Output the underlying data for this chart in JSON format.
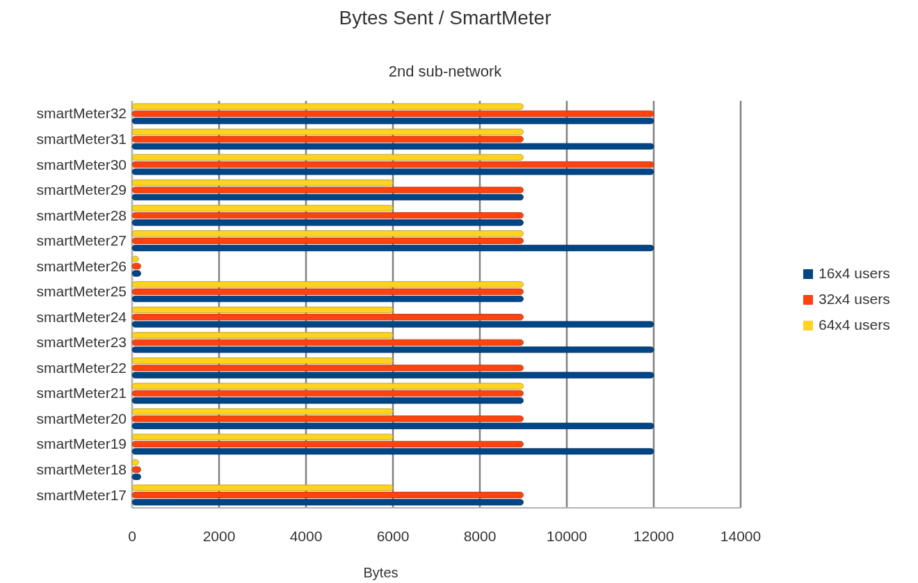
{
  "chart_data": {
    "type": "bar",
    "orientation": "horizontal",
    "title": "Bytes Sent / SmartMeter",
    "subtitle": "2nd sub-network",
    "xlabel": "Bytes",
    "categories": [
      "smartMeter32",
      "smartMeter31",
      "smartMeter30",
      "smartMeter29",
      "smartMeter28",
      "smartMeter27",
      "smartMeter26",
      "smartMeter25",
      "smartMeter24",
      "smartMeter23",
      "smartMeter22",
      "smartMeter21",
      "smartMeter20",
      "smartMeter19",
      "smartMeter18",
      "smartMeter17"
    ],
    "series": [
      {
        "name": "16x4 users",
        "color": "#004586",
        "values": [
          12000,
          12000,
          12000,
          9000,
          9000,
          12000,
          200,
          9000,
          12000,
          12000,
          12000,
          9000,
          12000,
          12000,
          200,
          9000
        ]
      },
      {
        "name": "32x4 users",
        "color": "#ff420e",
        "values": [
          12000,
          9000,
          12000,
          9000,
          9000,
          9000,
          200,
          9000,
          9000,
          9000,
          9000,
          9000,
          9000,
          9000,
          200,
          9000
        ]
      },
      {
        "name": "64x4 users",
        "color": "#ffd320",
        "values": [
          9000,
          9000,
          9000,
          6000,
          6000,
          9000,
          150,
          9000,
          6000,
          6000,
          6000,
          9000,
          6000,
          6000,
          150,
          6000
        ]
      }
    ],
    "xlim": [
      0,
      14000
    ],
    "xticks": [
      0,
      2000,
      4000,
      6000,
      8000,
      10000,
      12000,
      14000
    ],
    "grid": "x",
    "legend": "right"
  }
}
